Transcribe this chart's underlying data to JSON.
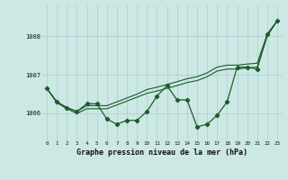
{
  "title": "Graphe pression niveau de la mer (hPa)",
  "background_color": "#cce8e4",
  "grid_color": "#aacccc",
  "line_color": "#1a5c2a",
  "x_labels": [
    "0",
    "1",
    "2",
    "3",
    "4",
    "5",
    "6",
    "7",
    "8",
    "9",
    "10",
    "11",
    "12",
    "13",
    "14",
    "15",
    "16",
    "17",
    "18",
    "19",
    "20",
    "21",
    "22",
    "23"
  ],
  "ylim": [
    1005.3,
    1008.8
  ],
  "yticks": [
    1006,
    1007,
    1008
  ],
  "series_jagged": [
    1006.65,
    1006.3,
    1006.15,
    1006.05,
    1006.25,
    1006.25,
    1005.85,
    1005.72,
    1005.82,
    1005.82,
    1006.05,
    1006.45,
    1006.72,
    1006.35,
    1006.35,
    1005.65,
    1005.72,
    1005.95,
    1006.3,
    1007.2,
    1007.2,
    1007.15,
    1008.05,
    1008.4
  ],
  "series_upper": [
    1006.65,
    1006.3,
    1006.15,
    1006.05,
    1006.2,
    1006.2,
    1006.2,
    1006.3,
    1006.4,
    1006.5,
    1006.62,
    1006.68,
    1006.75,
    1006.82,
    1006.9,
    1006.95,
    1007.05,
    1007.2,
    1007.25,
    1007.25,
    1007.28,
    1007.3,
    1008.05,
    1008.4
  ],
  "series_lower": [
    1006.65,
    1006.28,
    1006.12,
    1006.0,
    1006.12,
    1006.12,
    1006.12,
    1006.22,
    1006.32,
    1006.42,
    1006.52,
    1006.58,
    1006.65,
    1006.72,
    1006.8,
    1006.85,
    1006.95,
    1007.1,
    1007.15,
    1007.15,
    1007.18,
    1007.2,
    1008.0,
    1008.4
  ]
}
